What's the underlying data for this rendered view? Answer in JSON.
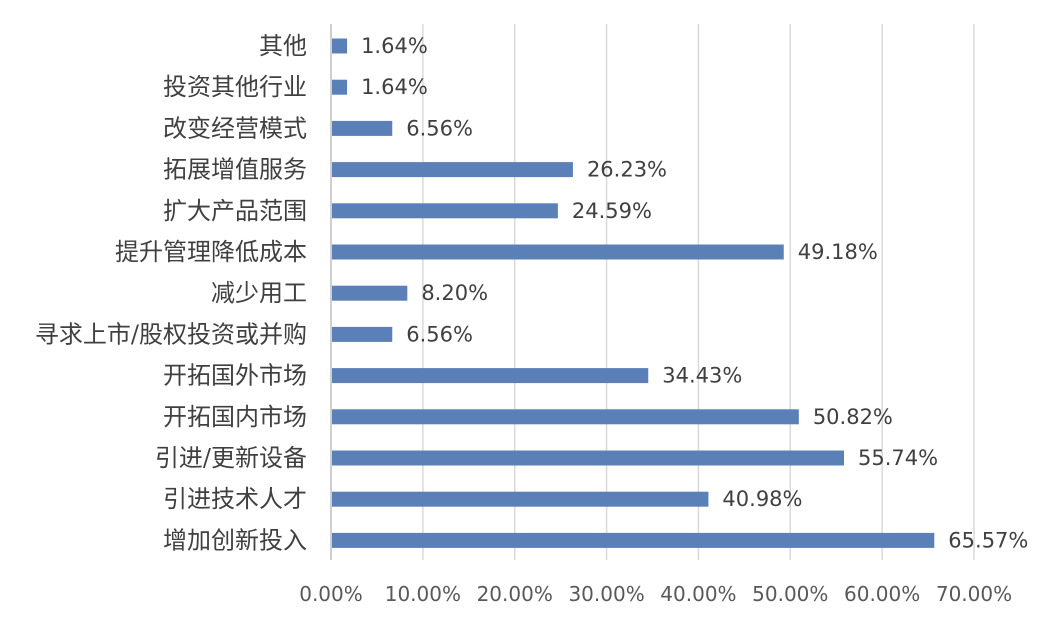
{
  "chart_data": {
    "type": "bar",
    "orientation": "horizontal",
    "title": "",
    "xlabel": "",
    "ylabel": "",
    "categories": [
      "其他",
      "投资其他行业",
      "改变经营模式",
      "拓展增值服务",
      "扩大产品范围",
      "提升管理降低成本",
      "减少用工",
      "寻求上市/股权投资或并购",
      "开拓国外市场",
      "开拓国内市场",
      "引进/更新设备",
      "引进技术人才",
      "增加创新投入"
    ],
    "values": [
      1.64,
      1.64,
      6.56,
      26.23,
      24.59,
      49.18,
      8.2,
      6.56,
      34.43,
      50.82,
      55.74,
      40.98,
      65.57
    ],
    "value_labels": [
      "1.64%",
      "1.64%",
      "6.56%",
      "26.23%",
      "24.59%",
      "49.18%",
      "8.20%",
      "6.56%",
      "34.43%",
      "50.82%",
      "55.74%",
      "40.98%",
      "65.57%"
    ],
    "xlim": [
      0,
      70
    ],
    "ticks": [
      0,
      10,
      20,
      30,
      40,
      50,
      60,
      70
    ],
    "tick_labels": [
      "0.00%",
      "10.00%",
      "20.00%",
      "30.00%",
      "40.00%",
      "50.00%",
      "60.00%",
      "70.00%"
    ],
    "grid": "vertical",
    "legend": "none",
    "bar_color": "#5b80b8"
  }
}
